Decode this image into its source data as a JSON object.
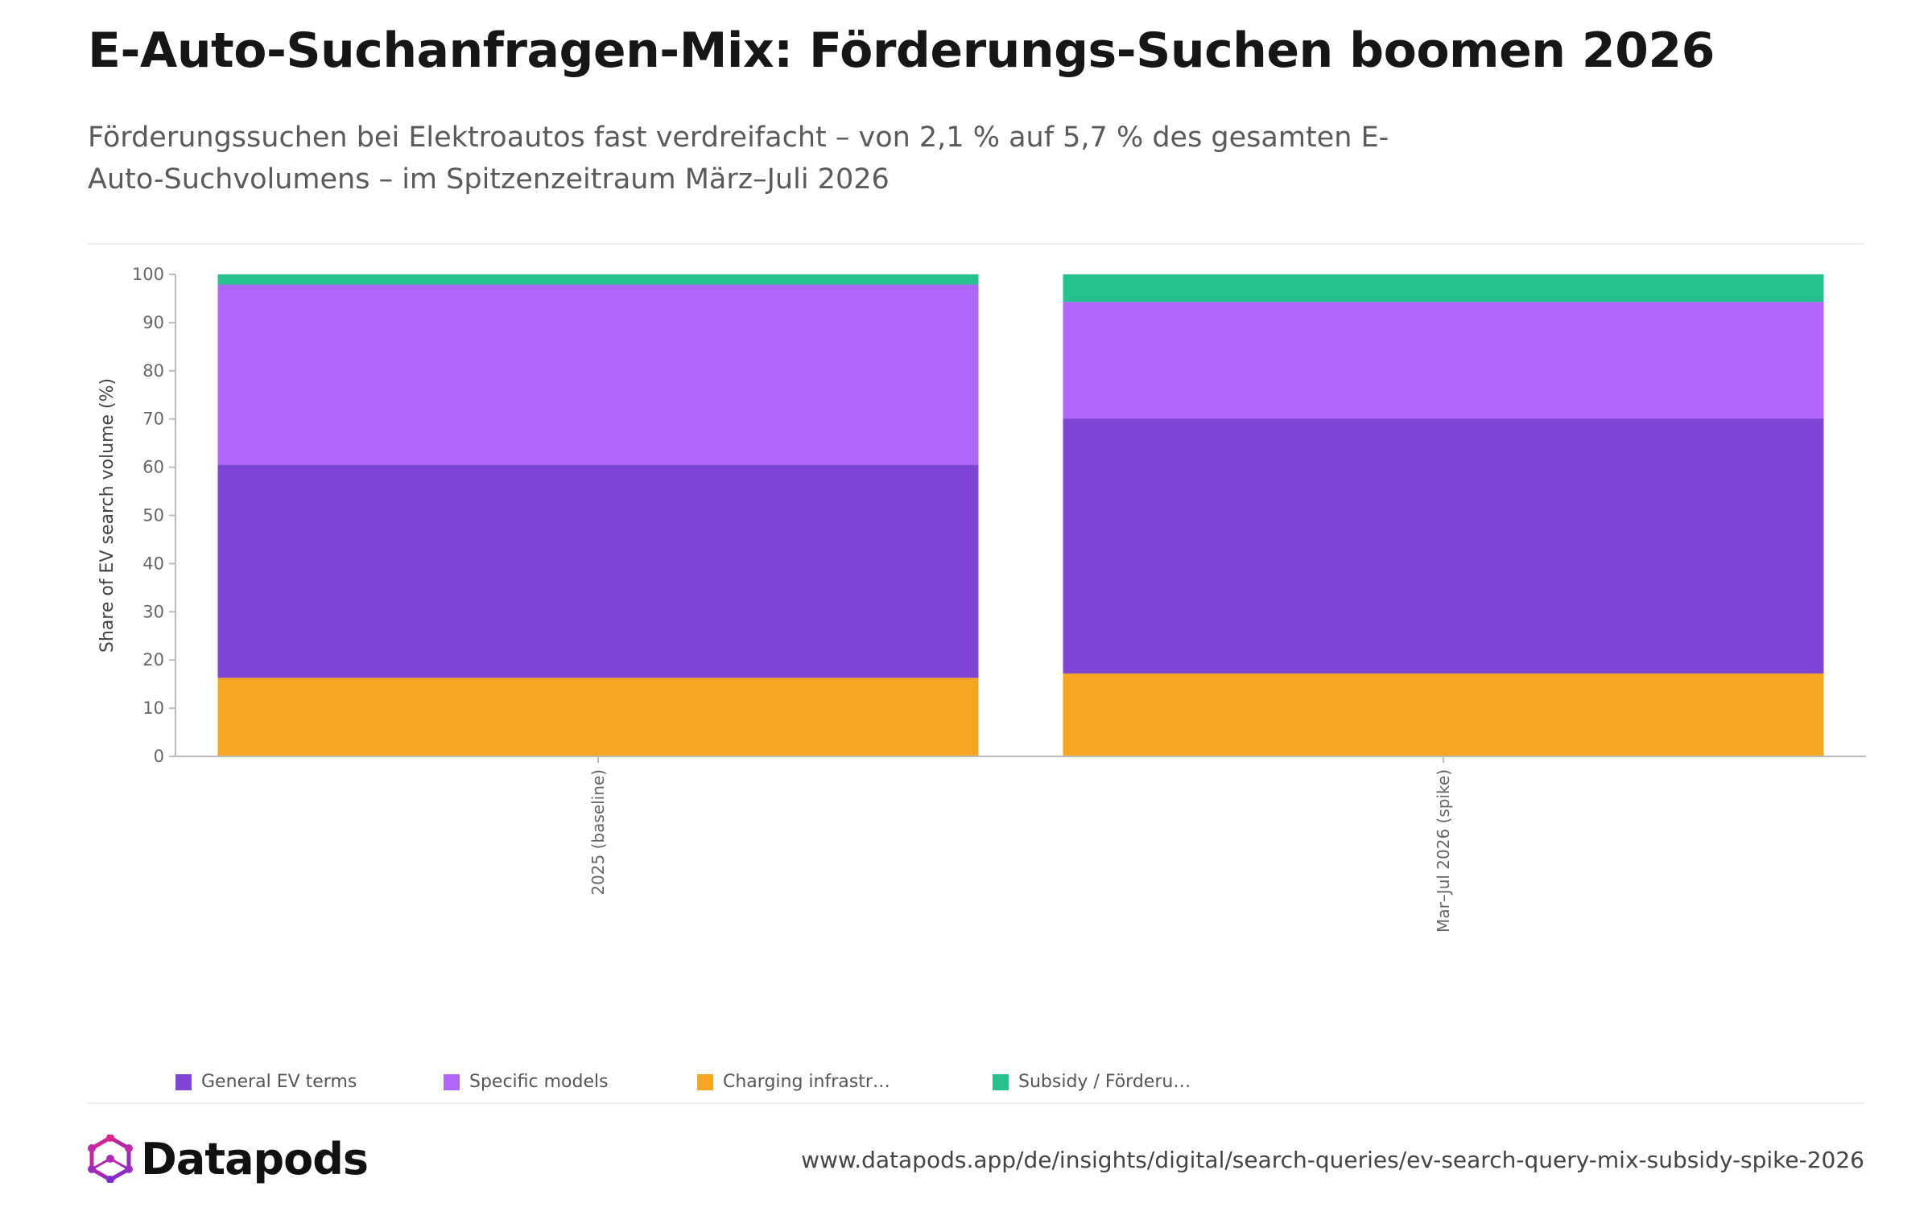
{
  "header": {
    "title": "E-Auto-Suchanfragen-Mix: Förderungs-Suchen boomen 2026",
    "subtitle": "Förderungssuchen bei Elektroautos fast verdreifacht – von 2,1 % auf 5,7 % des gesamten E-Auto-Suchvolumens – im Spitzenzeitraum März–Juli 2026"
  },
  "chart_data": {
    "type": "bar",
    "stacked": true,
    "categories": [
      "2025 (baseline)",
      "Mar–Jul 2026 (spike)"
    ],
    "series": [
      {
        "name": "Charging infrastr…",
        "color": "#f5a623",
        "values": [
          16.3,
          17.2
        ]
      },
      {
        "name": "General EV terms",
        "color": "#7e44d4",
        "values": [
          44.2,
          52.9
        ]
      },
      {
        "name": "Specific models",
        "color": "#af66f7",
        "values": [
          37.4,
          24.2
        ]
      },
      {
        "name": "Subsidy / Förderu…",
        "color": "#26c08e",
        "values": [
          2.1,
          5.7
        ]
      }
    ],
    "ylabel": "Share of EV search volume (%)",
    "xlabel": "",
    "ylim": [
      0,
      100
    ],
    "yticks": [
      "0",
      "10",
      "20",
      "30",
      "40",
      "50",
      "60",
      "70",
      "80",
      "90",
      "100"
    ],
    "grid": false,
    "legend_position": "bottom"
  },
  "legend": {
    "items": [
      {
        "label": "General EV terms",
        "color": "#7e44d4"
      },
      {
        "label": "Specific models",
        "color": "#af66f7"
      },
      {
        "label": "Charging infrastr…",
        "color": "#f5a623"
      },
      {
        "label": "Subsidy / Förderu…",
        "color": "#26c08e"
      }
    ]
  },
  "footer": {
    "brand": "Datapods",
    "url": "www.datapods.app/de/insights/digital/search-queries/ev-search-query-mix-subsidy-spike-2026"
  }
}
